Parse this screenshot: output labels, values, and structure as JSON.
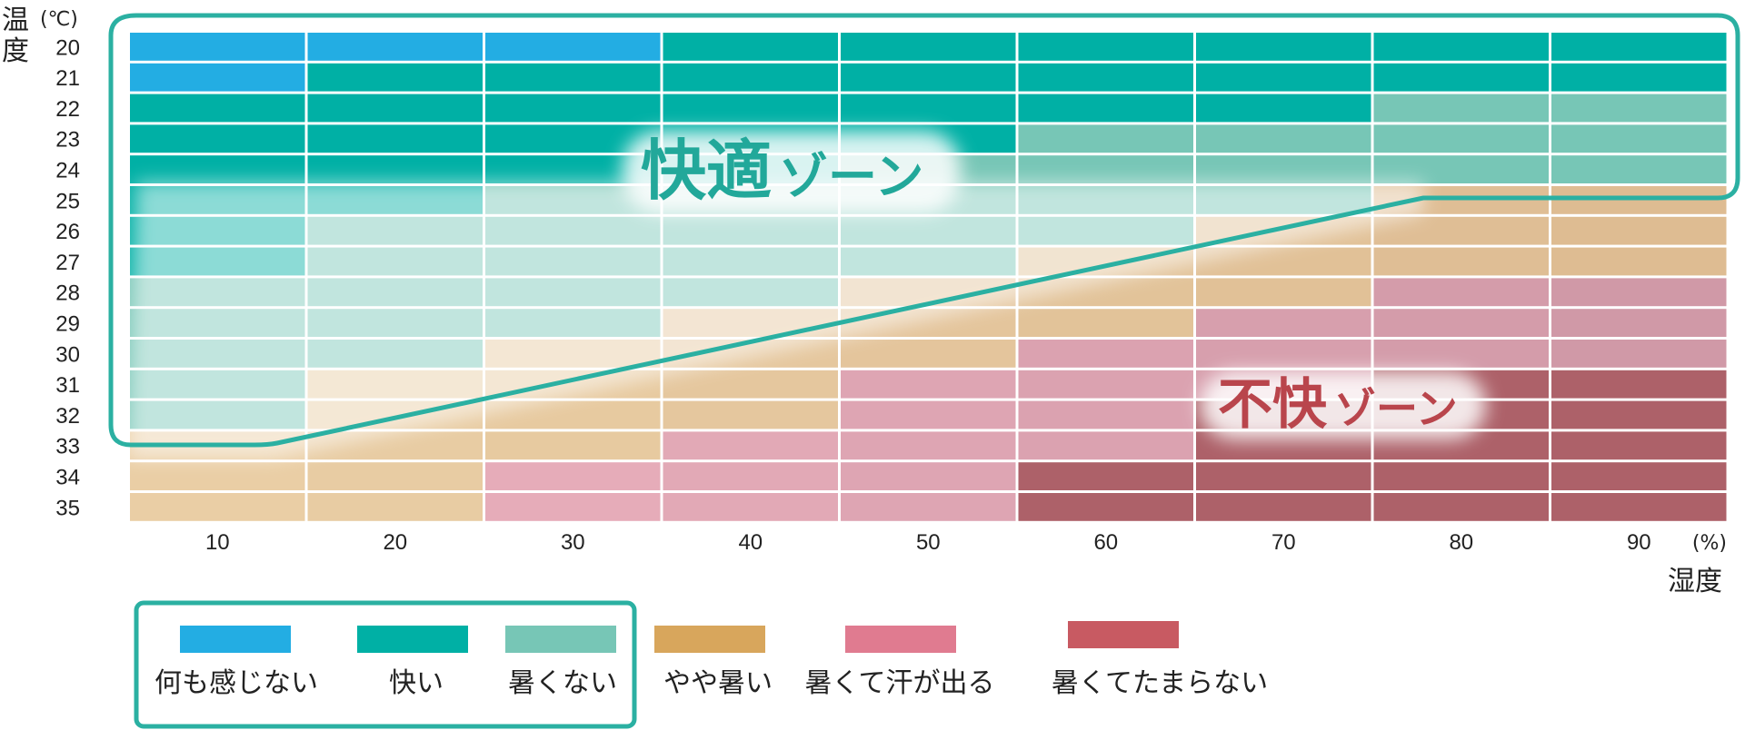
{
  "chart_data": {
    "type": "heatmap",
    "y_axis": {
      "title": "温度",
      "unit": "(℃)",
      "labels": [
        20,
        21,
        22,
        23,
        24,
        25,
        26,
        27,
        28,
        29,
        30,
        31,
        32,
        33,
        34,
        35
      ]
    },
    "x_axis": {
      "title": "湿度",
      "unit": "(%)",
      "labels": [
        10,
        20,
        30,
        40,
        50,
        60,
        70,
        80,
        90
      ]
    },
    "categories": [
      {
        "name": "何も感じない",
        "color": "#23ade3"
      },
      {
        "name": "快い",
        "color": "#00b0a5"
      },
      {
        "name": "暑くない",
        "color": "#77c6b6"
      },
      {
        "name": "やや暑い",
        "color": "#d8a65c"
      },
      {
        "name": "暑くて汗が出る",
        "color": "#e07b90"
      },
      {
        "name": "暑くてたまらない",
        "color": "#c85a62"
      }
    ],
    "cells": [
      [
        0,
        0,
        0,
        1,
        1,
        1,
        1,
        1,
        1
      ],
      [
        0,
        1,
        1,
        1,
        1,
        1,
        1,
        1,
        1
      ],
      [
        1,
        1,
        1,
        1,
        1,
        1,
        1,
        2,
        2
      ],
      [
        1,
        1,
        1,
        1,
        1,
        2,
        2,
        2,
        2
      ],
      [
        1,
        1,
        1,
        1,
        2,
        2,
        2,
        2,
        2
      ],
      [
        1,
        1,
        2,
        2,
        2,
        2,
        2,
        3,
        3
      ],
      [
        1,
        2,
        2,
        2,
        2,
        2,
        3,
        3,
        3
      ],
      [
        1,
        2,
        2,
        2,
        2,
        3,
        3,
        3,
        3
      ],
      [
        2,
        2,
        2,
        2,
        3,
        3,
        3,
        4,
        4
      ],
      [
        2,
        2,
        2,
        3,
        3,
        3,
        4,
        4,
        4
      ],
      [
        2,
        2,
        3,
        3,
        3,
        4,
        4,
        4,
        4
      ],
      [
        2,
        3,
        3,
        3,
        4,
        4,
        4,
        5,
        5
      ],
      [
        2,
        3,
        3,
        3,
        4,
        4,
        5,
        5,
        5
      ],
      [
        3,
        3,
        3,
        4,
        4,
        4,
        5,
        5,
        5
      ],
      [
        3,
        3,
        4,
        4,
        4,
        5,
        5,
        5,
        5
      ],
      [
        3,
        3,
        4,
        4,
        4,
        5,
        5,
        5,
        5
      ]
    ],
    "zones": [
      {
        "name": "快適ゾーン",
        "legend_categories": [
          "何も感じない",
          "快い",
          "暑くない"
        ]
      },
      {
        "name": "不快ゾーン"
      }
    ],
    "zone_color": "#2bb0a2",
    "discomfort_label_color": "#b9454c"
  }
}
